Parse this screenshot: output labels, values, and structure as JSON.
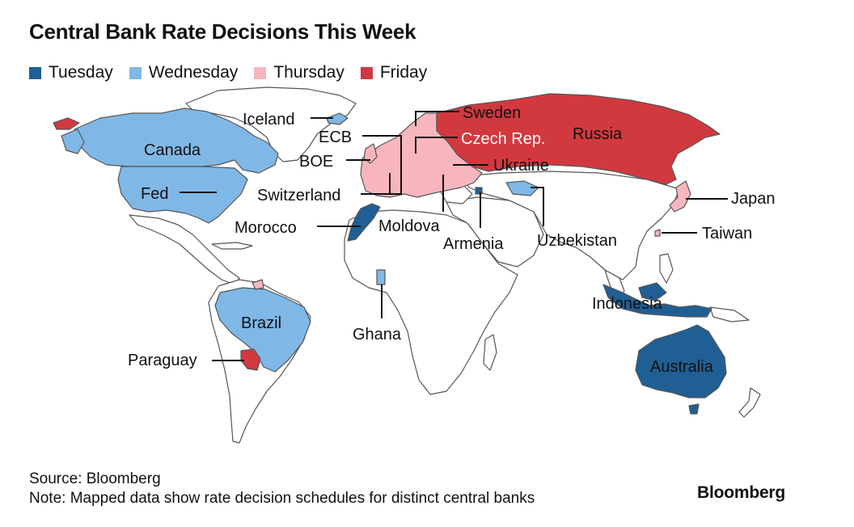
{
  "title": "Central Bank Rate Decisions This Week",
  "legend": [
    {
      "label": "Tuesday",
      "color": "#1f5f94"
    },
    {
      "label": "Wednesday",
      "color": "#7fb8e6"
    },
    {
      "label": "Thursday",
      "color": "#f7b6bd"
    },
    {
      "label": "Friday",
      "color": "#d2393f"
    }
  ],
  "countries": {
    "iceland": {
      "label": "Iceland",
      "day": "Wednesday"
    },
    "sweden": {
      "label": "Sweden",
      "day": "Thursday"
    },
    "ecb": {
      "label": "ECB",
      "day": "Thursday"
    },
    "czech": {
      "label": "Czech Rep.",
      "day": "Thursday"
    },
    "russia": {
      "label": "Russia",
      "day": "Friday"
    },
    "boe": {
      "label": "BOE",
      "day": "Thursday"
    },
    "ukraine": {
      "label": "Ukraine",
      "day": "Thursday"
    },
    "canada": {
      "label": "Canada",
      "day": "Wednesday"
    },
    "fed": {
      "label": "Fed",
      "day": "Wednesday"
    },
    "switzerland": {
      "label": "Switzerland",
      "day": "Thursday"
    },
    "japan": {
      "label": "Japan",
      "day": "Thursday"
    },
    "morocco": {
      "label": "Morocco",
      "day": "Tuesday"
    },
    "moldova": {
      "label": "Moldova",
      "day": "Thursday"
    },
    "taiwan": {
      "label": "Taiwan",
      "day": "Thursday"
    },
    "armenia": {
      "label": "Armenia",
      "day": "Tuesday"
    },
    "uzbekistan": {
      "label": "Uzbekistan",
      "day": "Wednesday"
    },
    "brazil": {
      "label": "Brazil",
      "day": "Wednesday"
    },
    "indonesia": {
      "label": "Indonesia",
      "day": "Tuesday"
    },
    "ghana": {
      "label": "Ghana",
      "day": "Wednesday"
    },
    "paraguay": {
      "label": "Paraguay",
      "day": "Friday"
    },
    "australia": {
      "label": "Australia",
      "day": "Tuesday"
    }
  },
  "footer": {
    "source": "Source: Bloomberg",
    "note": "Note: Mapped data show rate decision schedules for distinct central banks",
    "brand": "Bloomberg"
  }
}
